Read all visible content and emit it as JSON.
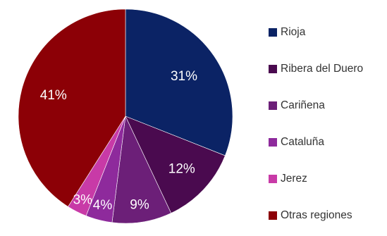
{
  "chart_data": {
    "type": "pie",
    "title": "",
    "legend_position": "right",
    "slices": [
      {
        "name": "Rioja",
        "value": 31,
        "label": "31%",
        "color": "#0b2365"
      },
      {
        "name": "Ribera del Duero",
        "value": 12,
        "label": "12%",
        "color": "#4a0a4f"
      },
      {
        "name": "Cariñena",
        "value": 9,
        "label": "9%",
        "color": "#6c1f78"
      },
      {
        "name": "Cataluña",
        "value": 4,
        "label": "4%",
        "color": "#8e2a9c"
      },
      {
        "name": "Jerez",
        "value": 3,
        "label": "3%",
        "color": "#c83aa7"
      },
      {
        "name": "Otras regiones",
        "value": 41,
        "label": "41%",
        "color": "#8c0006"
      }
    ]
  }
}
